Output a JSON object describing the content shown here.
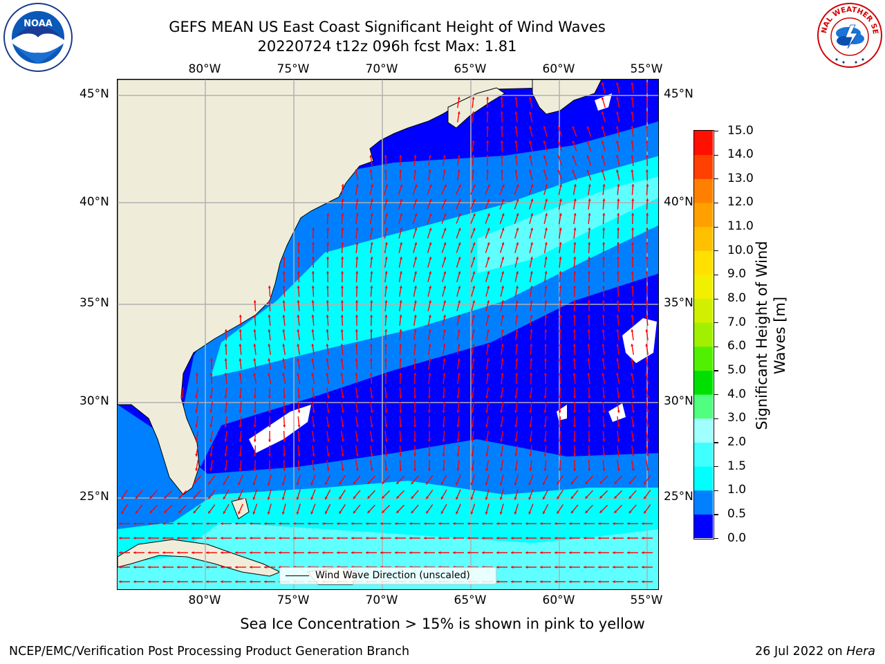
{
  "title": {
    "line1": "GEFS MEAN US East Coast Significant Height of Wind Waves",
    "line2": "20220724 t12z 096h fcst   Max: 1.81"
  },
  "map": {
    "lon_labels": [
      "80°W",
      "75°W",
      "70°W",
      "65°W",
      "60°W",
      "55°W"
    ],
    "lat_labels": [
      "45°N",
      "40°N",
      "35°N",
      "30°N",
      "25°N"
    ],
    "land_color": "#efedda",
    "water_color": "#0000ff",
    "arrow_color": "#ff0000",
    "grid_color": "#b0b0b0"
  },
  "legend": {
    "label": "Wind Wave Direction (unscaled)"
  },
  "colorbar": {
    "label_line1": "Significant Height of Wind",
    "label_line2": "Waves [m]",
    "ticks": [
      "0.0",
      "0.5",
      "1.0",
      "1.5",
      "2.0",
      "3.0",
      "4.0",
      "5.0",
      "6.0",
      "7.0",
      "8.0",
      "9.0",
      "10.0",
      "11.0",
      "12.0",
      "13.0",
      "14.0",
      "15.0"
    ],
    "colors": [
      "#0000ff",
      "#0080ff",
      "#00ffff",
      "#40ffff",
      "#a0ffff",
      "#50ff80",
      "#00e000",
      "#50f000",
      "#a0f000",
      "#d0f000",
      "#f0f000",
      "#ffe000",
      "#ffc000",
      "#ffa000",
      "#ff8000",
      "#ff4000",
      "#ff1000"
    ]
  },
  "ice_note": "Sea Ice Concentration > 15% is shown in pink to yellow",
  "footer": {
    "left": "NCEP/EMC/Verification Post Processing Product Generation Branch",
    "right_prefix": "26 Jul 2022 on ",
    "right_host": "Hera"
  },
  "logos": {
    "noaa": "NOAA",
    "nws": "NATIONAL WEATHER SERVICE"
  }
}
